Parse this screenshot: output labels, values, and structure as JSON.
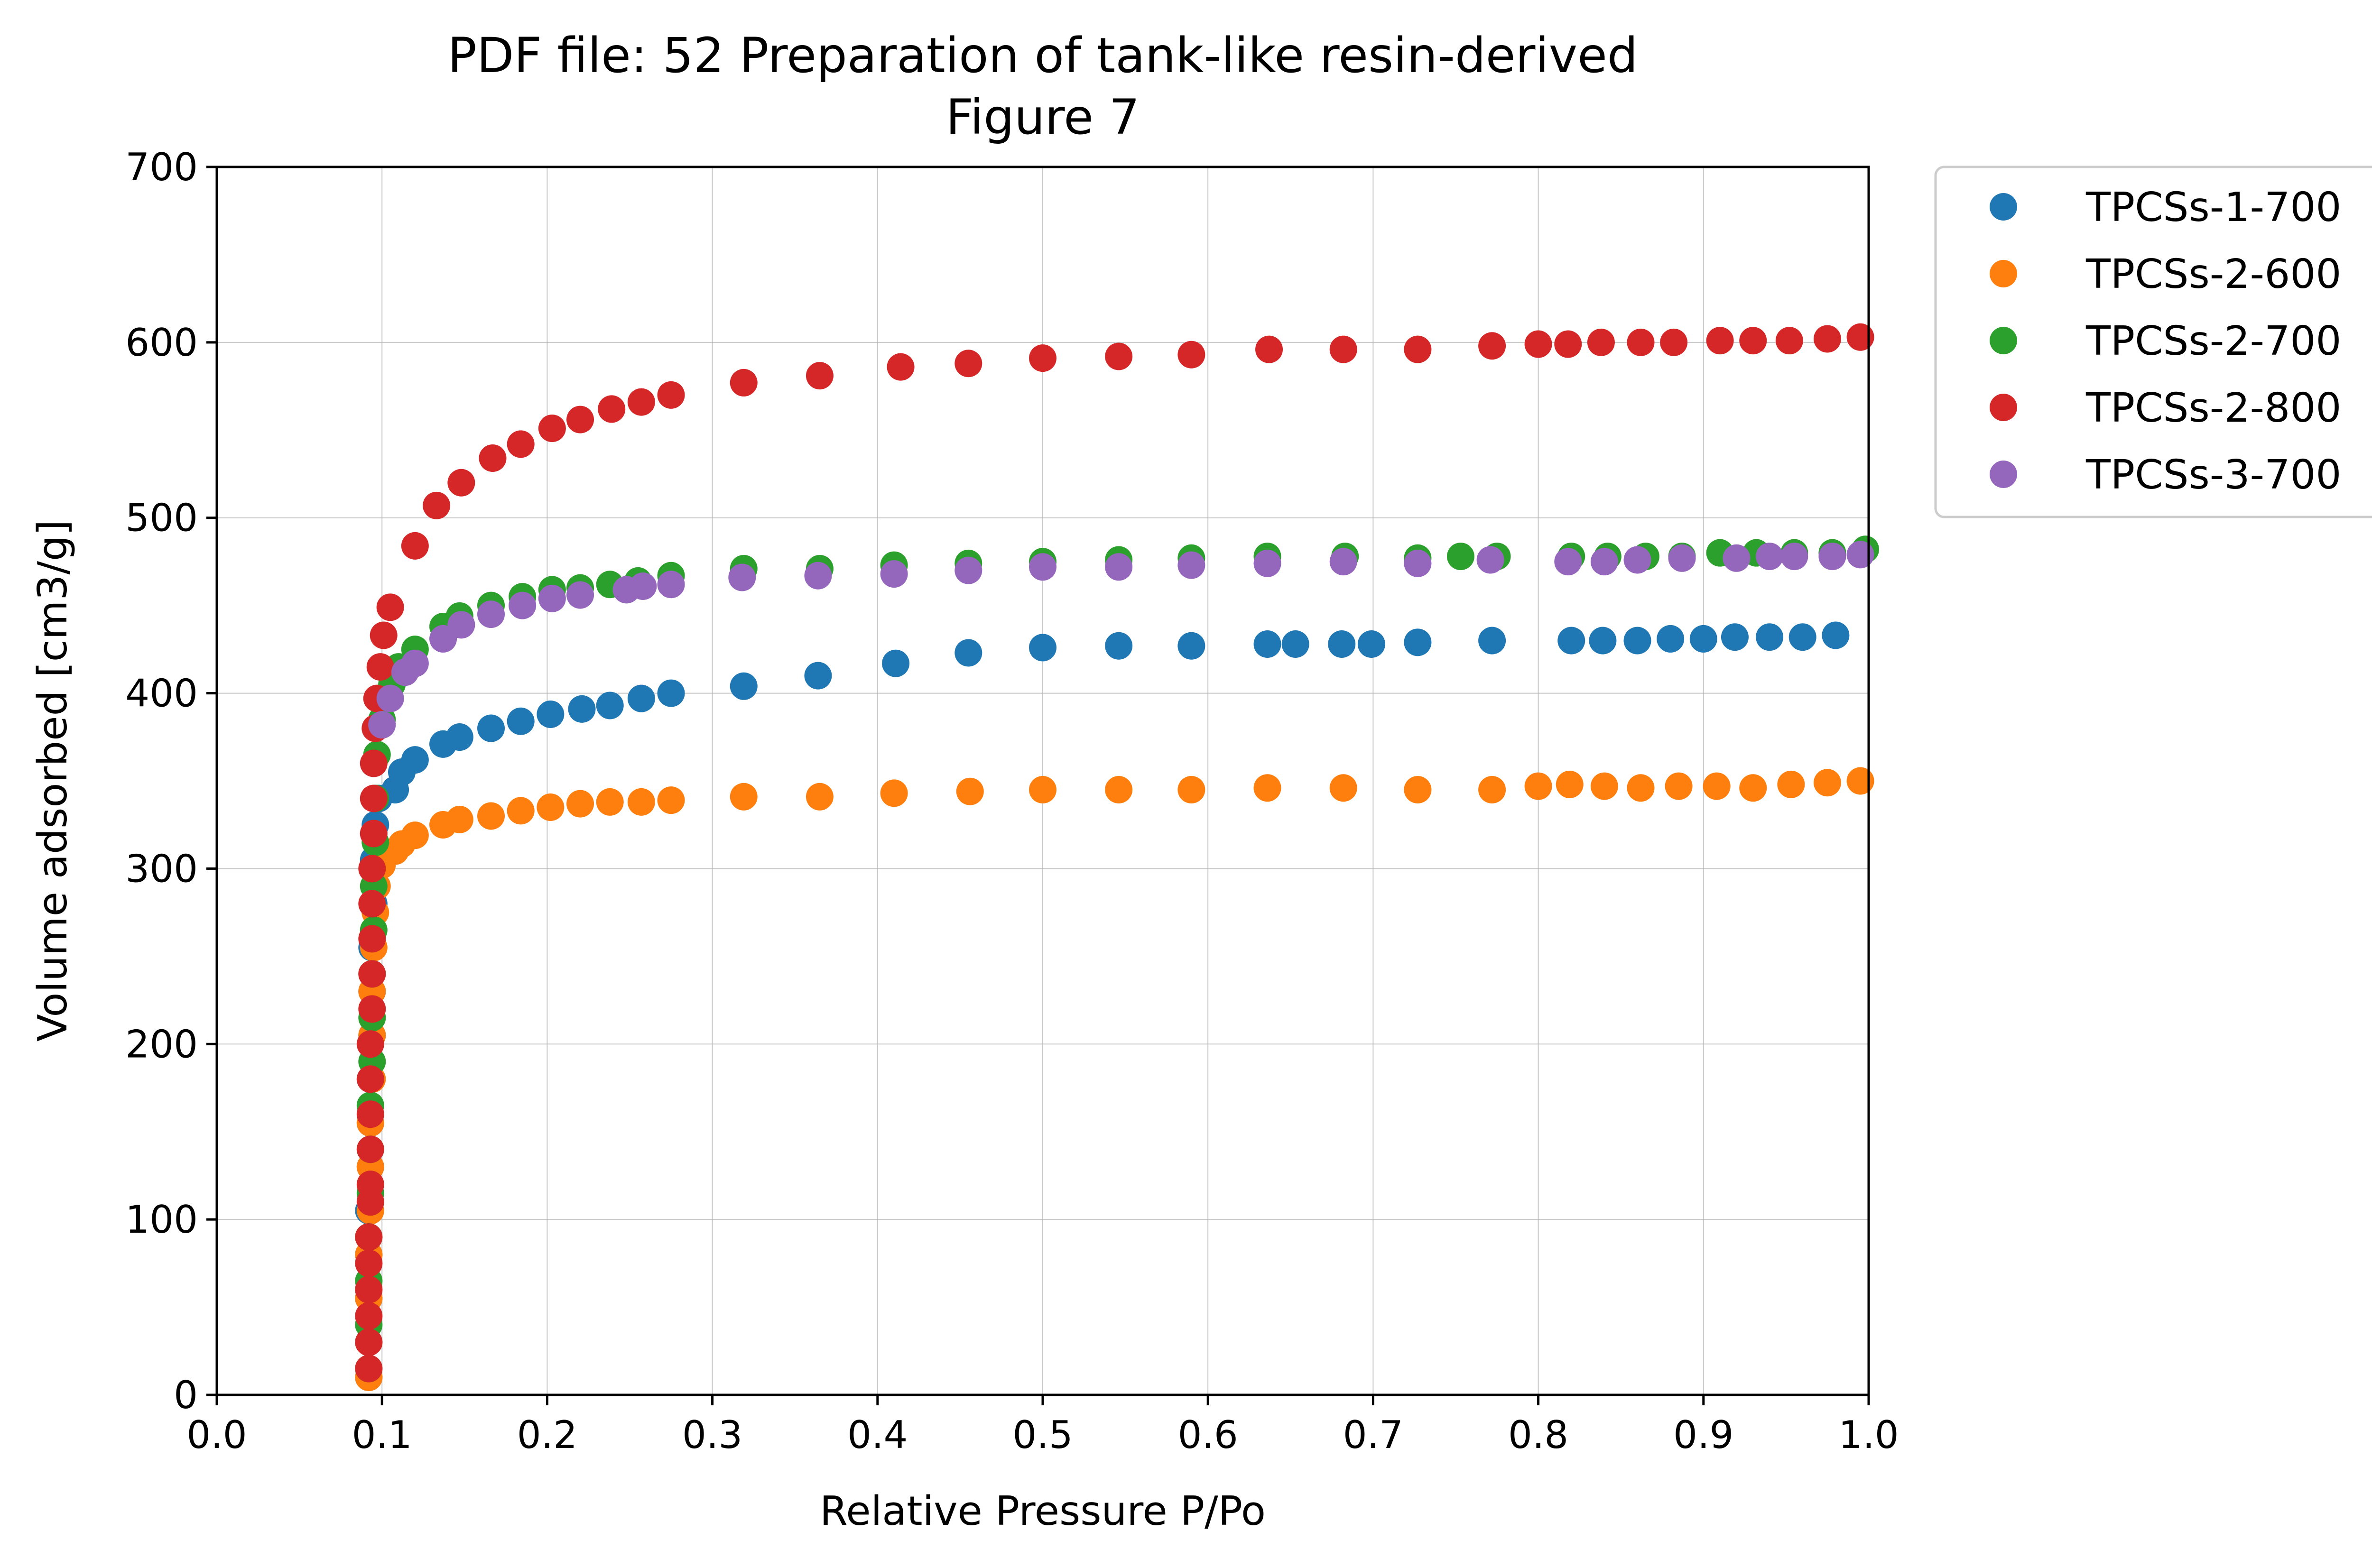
{
  "chart_data": {
    "type": "scatter",
    "title_line1": "PDF file: 52 Preparation of tank-like resin-derived",
    "title_line2": "Figure 7",
    "xlabel": "Relative Pressure P/Po",
    "ylabel": "Volume adsorbed [cm3/g]",
    "xlim": [
      0,
      1
    ],
    "ylim": [
      0,
      700
    ],
    "xticks": [
      "0.0",
      "0.1",
      "0.2",
      "0.3",
      "0.4",
      "0.5",
      "0.6",
      "0.7",
      "0.8",
      "0.9",
      "1.0"
    ],
    "yticks": [
      "0",
      "100",
      "200",
      "300",
      "400",
      "500",
      "600",
      "700"
    ],
    "grid": true,
    "legend_position": "outside-top-right",
    "series": [
      {
        "name": "TPCSs-1-700",
        "color": "#1f77b4",
        "points": [
          [
            0.092,
            10
          ],
          [
            0.092,
            30
          ],
          [
            0.092,
            55
          ],
          [
            0.092,
            80
          ],
          [
            0.092,
            105
          ],
          [
            0.093,
            130
          ],
          [
            0.093,
            155
          ],
          [
            0.093,
            180
          ],
          [
            0.094,
            205
          ],
          [
            0.094,
            230
          ],
          [
            0.094,
            255
          ],
          [
            0.095,
            280
          ],
          [
            0.095,
            305
          ],
          [
            0.096,
            325
          ],
          [
            0.098,
            340
          ],
          [
            0.108,
            345
          ],
          [
            0.112,
            355
          ],
          [
            0.12,
            362
          ],
          [
            0.137,
            371
          ],
          [
            0.147,
            375
          ],
          [
            0.166,
            380
          ],
          [
            0.184,
            384
          ],
          [
            0.202,
            388
          ],
          [
            0.221,
            391
          ],
          [
            0.238,
            393
          ],
          [
            0.257,
            397
          ],
          [
            0.275,
            400
          ],
          [
            0.319,
            404
          ],
          [
            0.364,
            410
          ],
          [
            0.411,
            417
          ],
          [
            0.455,
            423
          ],
          [
            0.5,
            426
          ],
          [
            0.546,
            427
          ],
          [
            0.59,
            427
          ],
          [
            0.636,
            428
          ],
          [
            0.653,
            428
          ],
          [
            0.681,
            428
          ],
          [
            0.699,
            428
          ],
          [
            0.727,
            429
          ],
          [
            0.772,
            430
          ],
          [
            0.82,
            430
          ],
          [
            0.839,
            430
          ],
          [
            0.86,
            430
          ],
          [
            0.88,
            431
          ],
          [
            0.9,
            431
          ],
          [
            0.919,
            432
          ],
          [
            0.94,
            432
          ],
          [
            0.96,
            432
          ],
          [
            0.98,
            433
          ]
        ]
      },
      {
        "name": "TPCSs-2-600",
        "color": "#ff7f0e",
        "points": [
          [
            0.092,
            10
          ],
          [
            0.092,
            30
          ],
          [
            0.092,
            55
          ],
          [
            0.092,
            80
          ],
          [
            0.093,
            105
          ],
          [
            0.093,
            130
          ],
          [
            0.093,
            155
          ],
          [
            0.094,
            180
          ],
          [
            0.094,
            205
          ],
          [
            0.094,
            230
          ],
          [
            0.095,
            255
          ],
          [
            0.096,
            275
          ],
          [
            0.097,
            290
          ],
          [
            0.1,
            302
          ],
          [
            0.108,
            310
          ],
          [
            0.112,
            314
          ],
          [
            0.12,
            319
          ],
          [
            0.137,
            325
          ],
          [
            0.147,
            328
          ],
          [
            0.166,
            330
          ],
          [
            0.184,
            333
          ],
          [
            0.202,
            335
          ],
          [
            0.22,
            337
          ],
          [
            0.238,
            338
          ],
          [
            0.257,
            338
          ],
          [
            0.275,
            339
          ],
          [
            0.319,
            341
          ],
          [
            0.365,
            341
          ],
          [
            0.41,
            343
          ],
          [
            0.456,
            344
          ],
          [
            0.5,
            345
          ],
          [
            0.546,
            345
          ],
          [
            0.59,
            345
          ],
          [
            0.636,
            346
          ],
          [
            0.682,
            346
          ],
          [
            0.727,
            345
          ],
          [
            0.772,
            345
          ],
          [
            0.8,
            347
          ],
          [
            0.819,
            348
          ],
          [
            0.84,
            347
          ],
          [
            0.862,
            346
          ],
          [
            0.885,
            347
          ],
          [
            0.908,
            347
          ],
          [
            0.93,
            346
          ],
          [
            0.953,
            348
          ],
          [
            0.975,
            349
          ],
          [
            0.995,
            350
          ]
        ]
      },
      {
        "name": "TPCSs-2-700",
        "color": "#2ca02c",
        "points": [
          [
            0.092,
            15
          ],
          [
            0.092,
            40
          ],
          [
            0.092,
            65
          ],
          [
            0.092,
            90
          ],
          [
            0.093,
            115
          ],
          [
            0.093,
            140
          ],
          [
            0.093,
            165
          ],
          [
            0.094,
            190
          ],
          [
            0.094,
            215
          ],
          [
            0.094,
            240
          ],
          [
            0.095,
            265
          ],
          [
            0.095,
            290
          ],
          [
            0.096,
            315
          ],
          [
            0.096,
            340
          ],
          [
            0.097,
            365
          ],
          [
            0.1,
            385
          ],
          [
            0.106,
            405
          ],
          [
            0.11,
            415
          ],
          [
            0.12,
            425
          ],
          [
            0.137,
            438
          ],
          [
            0.147,
            444
          ],
          [
            0.166,
            450
          ],
          [
            0.185,
            455
          ],
          [
            0.203,
            459
          ],
          [
            0.22,
            460
          ],
          [
            0.238,
            462
          ],
          [
            0.255,
            464
          ],
          [
            0.275,
            467
          ],
          [
            0.319,
            471
          ],
          [
            0.365,
            471
          ],
          [
            0.41,
            473
          ],
          [
            0.455,
            474
          ],
          [
            0.5,
            475
          ],
          [
            0.546,
            476
          ],
          [
            0.59,
            477
          ],
          [
            0.636,
            478
          ],
          [
            0.683,
            478
          ],
          [
            0.727,
            477
          ],
          [
            0.753,
            478
          ],
          [
            0.775,
            478
          ],
          [
            0.82,
            478
          ],
          [
            0.842,
            478
          ],
          [
            0.865,
            478
          ],
          [
            0.887,
            478
          ],
          [
            0.91,
            480
          ],
          [
            0.932,
            480
          ],
          [
            0.955,
            480
          ],
          [
            0.978,
            480
          ],
          [
            0.998,
            482
          ]
        ]
      },
      {
        "name": "TPCSs-2-800",
        "color": "#d62728",
        "points": [
          [
            0.092,
            15
          ],
          [
            0.092,
            30
          ],
          [
            0.092,
            45
          ],
          [
            0.092,
            60
          ],
          [
            0.092,
            75
          ],
          [
            0.092,
            90
          ],
          [
            0.093,
            110
          ],
          [
            0.093,
            120
          ],
          [
            0.093,
            140
          ],
          [
            0.093,
            160
          ],
          [
            0.093,
            180
          ],
          [
            0.093,
            200
          ],
          [
            0.094,
            220
          ],
          [
            0.094,
            240
          ],
          [
            0.094,
            260
          ],
          [
            0.094,
            280
          ],
          [
            0.094,
            300
          ],
          [
            0.095,
            320
          ],
          [
            0.095,
            340
          ],
          [
            0.095,
            360
          ],
          [
            0.096,
            380
          ],
          [
            0.097,
            397
          ],
          [
            0.099,
            415
          ],
          [
            0.101,
            433
          ],
          [
            0.105,
            449
          ],
          [
            0.12,
            484
          ],
          [
            0.133,
            507
          ],
          [
            0.148,
            520
          ],
          [
            0.167,
            534
          ],
          [
            0.184,
            542
          ],
          [
            0.203,
            551
          ],
          [
            0.22,
            556
          ],
          [
            0.239,
            562
          ],
          [
            0.257,
            566
          ],
          [
            0.275,
            570
          ],
          [
            0.319,
            577
          ],
          [
            0.365,
            581
          ],
          [
            0.414,
            586
          ],
          [
            0.455,
            588
          ],
          [
            0.5,
            591
          ],
          [
            0.546,
            592
          ],
          [
            0.59,
            593
          ],
          [
            0.637,
            596
          ],
          [
            0.682,
            596
          ],
          [
            0.727,
            596
          ],
          [
            0.772,
            598
          ],
          [
            0.8,
            599
          ],
          [
            0.818,
            599
          ],
          [
            0.838,
            600
          ],
          [
            0.862,
            600
          ],
          [
            0.882,
            600
          ],
          [
            0.91,
            601
          ],
          [
            0.93,
            601
          ],
          [
            0.952,
            601
          ],
          [
            0.975,
            602
          ],
          [
            0.995,
            603
          ]
        ]
      },
      {
        "name": "TPCSs-3-700",
        "color": "#9467bd",
        "points": [
          [
            0.1,
            382
          ],
          [
            0.105,
            397
          ],
          [
            0.114,
            412
          ],
          [
            0.12,
            417
          ],
          [
            0.137,
            431
          ],
          [
            0.148,
            439
          ],
          [
            0.166,
            445
          ],
          [
            0.185,
            450
          ],
          [
            0.203,
            454
          ],
          [
            0.22,
            456
          ],
          [
            0.248,
            459
          ],
          [
            0.258,
            461
          ],
          [
            0.275,
            462
          ],
          [
            0.318,
            466
          ],
          [
            0.364,
            467
          ],
          [
            0.41,
            468
          ],
          [
            0.455,
            470
          ],
          [
            0.5,
            472
          ],
          [
            0.546,
            472
          ],
          [
            0.59,
            473
          ],
          [
            0.636,
            474
          ],
          [
            0.682,
            475
          ],
          [
            0.727,
            474
          ],
          [
            0.771,
            476
          ],
          [
            0.818,
            475
          ],
          [
            0.84,
            475
          ],
          [
            0.86,
            476
          ],
          [
            0.887,
            477
          ],
          [
            0.92,
            477
          ],
          [
            0.94,
            478
          ],
          [
            0.955,
            478
          ],
          [
            0.978,
            478
          ],
          [
            0.995,
            479
          ]
        ]
      }
    ]
  }
}
